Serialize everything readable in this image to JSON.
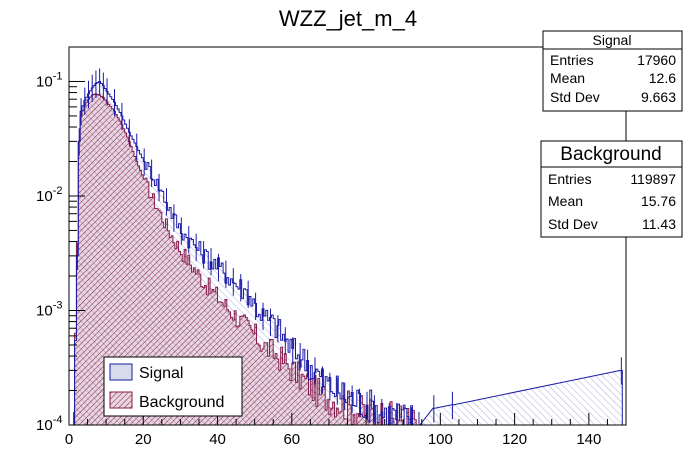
{
  "chart_data": {
    "type": "histogram",
    "title": "WZZ_jet_m_4",
    "xlabel": "",
    "ylabel": "",
    "xlim": [
      0,
      150
    ],
    "ylog": true,
    "ylim": [
      0.0001,
      0.2
    ],
    "x_ticks": [
      "0",
      "20",
      "40",
      "60",
      "80",
      "100",
      "120",
      "140"
    ],
    "y_ticks": [
      {
        "label": "10",
        "exp": "-4",
        "value": 0.0001
      },
      {
        "label": "10",
        "exp": "-3",
        "value": 0.001
      },
      {
        "label": "10",
        "exp": "-2",
        "value": 0.01
      },
      {
        "label": "10",
        "exp": "-1",
        "value": 0.1
      }
    ],
    "legend_position": "bottom-left",
    "series": [
      {
        "name": "Signal",
        "color": "#1a1aa6",
        "fill": "#d6dcea",
        "bin_width": 0.5,
        "points": [
          [
            1,
            0.0001
          ],
          [
            2,
            0.003
          ],
          [
            2.5,
            0.03
          ],
          [
            3,
            0.055
          ],
          [
            4,
            0.068
          ],
          [
            5,
            0.078
          ],
          [
            6,
            0.088
          ],
          [
            7,
            0.096
          ],
          [
            8,
            0.1
          ],
          [
            9,
            0.092
          ],
          [
            10,
            0.082
          ],
          [
            12,
            0.066
          ],
          [
            14,
            0.05
          ],
          [
            16,
            0.036
          ],
          [
            18,
            0.027
          ],
          [
            20,
            0.02
          ],
          [
            22,
            0.016
          ],
          [
            24,
            0.012
          ],
          [
            26,
            0.009
          ],
          [
            28,
            0.0065
          ],
          [
            30,
            0.005
          ],
          [
            32,
            0.0042
          ],
          [
            34,
            0.0036
          ],
          [
            36,
            0.0031
          ],
          [
            38,
            0.0027
          ],
          [
            40,
            0.0024
          ],
          [
            42,
            0.0021
          ],
          [
            44,
            0.0018
          ],
          [
            46,
            0.0016
          ],
          [
            48,
            0.0014
          ],
          [
            50,
            0.0011
          ],
          [
            52,
            0.0009
          ],
          [
            54,
            0.0008
          ],
          [
            56,
            0.0007
          ],
          [
            58,
            0.00055
          ],
          [
            60,
            0.00045
          ],
          [
            62,
            0.0004
          ],
          [
            64,
            0.00035
          ],
          [
            66,
            0.0003
          ],
          [
            68,
            0.00025
          ],
          [
            70,
            0.00022
          ],
          [
            72,
            0.0002
          ],
          [
            74,
            0.00018
          ],
          [
            76,
            0.00017
          ],
          [
            78,
            0.00016
          ],
          [
            80,
            0.00015
          ],
          [
            82,
            0.00014
          ],
          [
            84,
            0.00013
          ],
          [
            86,
            0.00012
          ],
          [
            88,
            0.00012
          ],
          [
            90,
            0.00011
          ],
          [
            92,
            0.00011
          ],
          [
            94,
            0.0001
          ],
          [
            98,
            0.00014
          ],
          [
            103,
            0.00015
          ],
          [
            148.5,
            0.0003
          ]
        ]
      },
      {
        "name": "Background",
        "color": "#8a1a4a",
        "fill": "#e8d6dc",
        "bin_width": 0.5,
        "points": [
          [
            1,
            0.0001
          ],
          [
            2,
            0.004
          ],
          [
            2.5,
            0.03
          ],
          [
            3,
            0.05
          ],
          [
            4,
            0.062
          ],
          [
            5,
            0.07
          ],
          [
            6,
            0.076
          ],
          [
            7,
            0.078
          ],
          [
            8,
            0.076
          ],
          [
            9,
            0.072
          ],
          [
            10,
            0.066
          ],
          [
            12,
            0.055
          ],
          [
            14,
            0.042
          ],
          [
            16,
            0.03
          ],
          [
            18,
            0.02
          ],
          [
            20,
            0.014
          ],
          [
            22,
            0.01
          ],
          [
            24,
            0.0075
          ],
          [
            26,
            0.0055
          ],
          [
            28,
            0.0042
          ],
          [
            30,
            0.0033
          ],
          [
            32,
            0.0027
          ],
          [
            34,
            0.0022
          ],
          [
            36,
            0.0018
          ],
          [
            38,
            0.0015
          ],
          [
            40,
            0.0013
          ],
          [
            42,
            0.0011
          ],
          [
            44,
            0.00095
          ],
          [
            46,
            0.0008
          ],
          [
            48,
            0.0007
          ],
          [
            50,
            0.0006
          ],
          [
            52,
            0.0005
          ],
          [
            54,
            0.00045
          ],
          [
            56,
            0.0004
          ],
          [
            58,
            0.00035
          ],
          [
            60,
            0.0003
          ],
          [
            62,
            0.00026
          ],
          [
            64,
            0.00023
          ],
          [
            66,
            0.0002
          ],
          [
            68,
            0.00018
          ],
          [
            70,
            0.00017
          ],
          [
            72,
            0.00016
          ],
          [
            74,
            0.00015
          ],
          [
            76,
            0.00014
          ],
          [
            78,
            0.00013
          ],
          [
            80,
            0.00013
          ],
          [
            82,
            0.00012
          ],
          [
            84,
            0.00012
          ],
          [
            86,
            0.00011
          ],
          [
            88,
            0.00011
          ],
          [
            90,
            0.00011
          ],
          [
            92,
            0.0001
          ],
          [
            94,
            0.0001
          ]
        ]
      }
    ]
  },
  "stats_boxes": [
    {
      "title": "Signal",
      "rows": [
        {
          "label": "Entries",
          "value": "17960"
        },
        {
          "label": "Mean",
          "value": "12.6"
        },
        {
          "label": "Std Dev",
          "value": "9.663"
        }
      ]
    },
    {
      "title": "Background",
      "rows": [
        {
          "label": "Entries",
          "value": "119897"
        },
        {
          "label": "Mean",
          "value": "15.76"
        },
        {
          "label": "Std Dev",
          "value": "11.43"
        }
      ]
    }
  ],
  "legend": [
    {
      "label": "Signal"
    },
    {
      "label": "Background"
    }
  ]
}
